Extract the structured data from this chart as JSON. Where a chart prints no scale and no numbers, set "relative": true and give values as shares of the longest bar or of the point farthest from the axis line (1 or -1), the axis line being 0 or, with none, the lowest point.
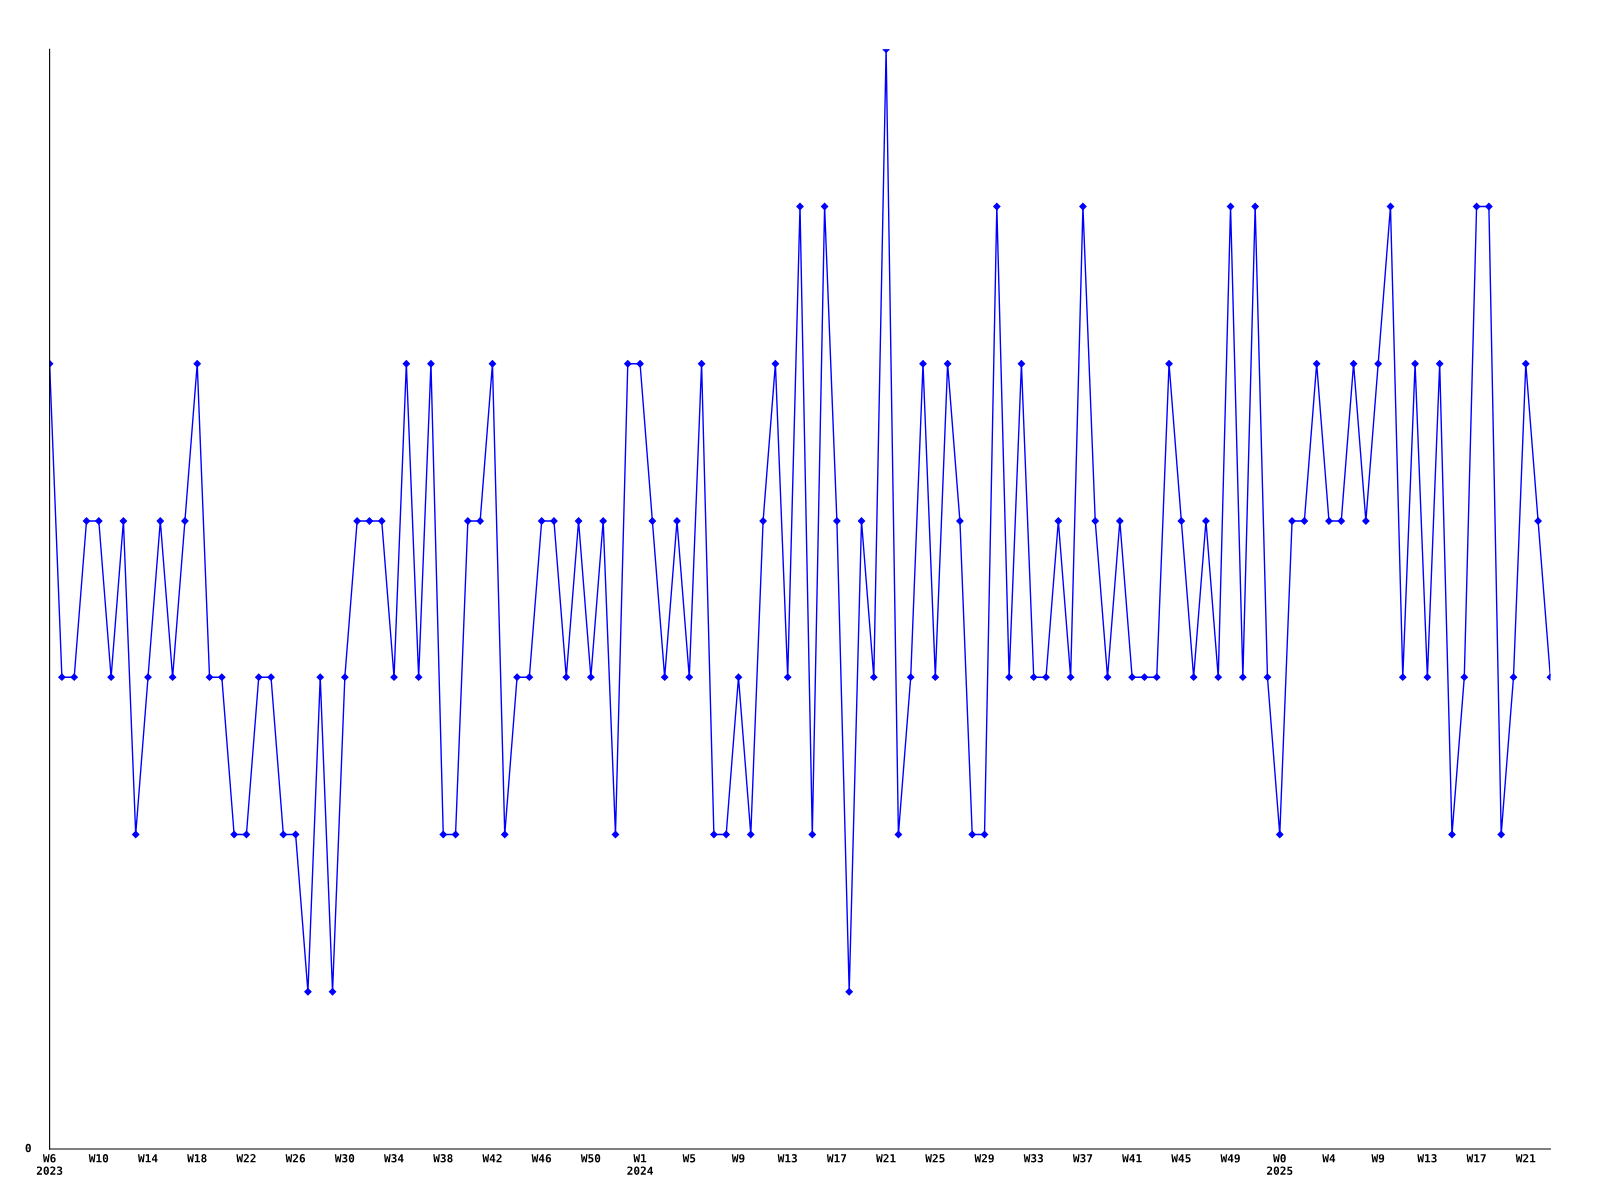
{
  "chart_data": {
    "type": "line",
    "relative": true,
    "marker": "diamond",
    "line_style": "solid",
    "grid": false,
    "legend": false,
    "tick_labels": "x",
    "annotations": [
      "0"
    ],
    "categories": [
      "W6\n2023",
      null,
      null,
      null,
      "W10",
      null,
      null,
      null,
      "W14",
      null,
      null,
      null,
      "W18",
      null,
      null,
      null,
      "W22",
      null,
      null,
      null,
      "W26",
      null,
      null,
      null,
      "W30",
      null,
      null,
      null,
      "W34",
      null,
      null,
      null,
      "W38",
      null,
      null,
      null,
      "W42",
      null,
      null,
      null,
      "W46",
      null,
      null,
      null,
      "W50",
      null,
      null,
      null,
      "W1\n2024",
      null,
      null,
      null,
      "W5",
      null,
      null,
      null,
      "W9",
      null,
      null,
      null,
      "W13",
      null,
      null,
      null,
      "W17",
      null,
      null,
      null,
      "W21",
      null,
      null,
      null,
      "W25",
      null,
      null,
      null,
      "W29",
      null,
      null,
      null,
      "W33",
      null,
      null,
      null,
      "W37",
      null,
      null,
      null,
      "W41",
      null,
      null,
      null,
      "W45",
      null,
      null,
      null,
      "W49",
      null,
      null,
      null,
      "W0\n2025",
      null,
      null,
      null,
      "W4",
      null,
      null,
      null,
      "W9",
      null,
      null,
      null,
      "W13",
      null,
      null,
      null,
      "W17",
      null,
      null,
      null,
      "W21",
      null,
      null
    ],
    "series": [
      {
        "color": "#0000ff",
        "values": [
          0.714,
          0.429,
          0.429,
          0.571,
          0.571,
          0.429,
          0.571,
          0.286,
          0.429,
          0.571,
          0.429,
          0.571,
          0.714,
          0.429,
          0.429,
          0.286,
          0.286,
          0.429,
          0.429,
          0.286,
          0.286,
          0.143,
          0.429,
          0.143,
          0.429,
          0.571,
          0.571,
          0.571,
          0.429,
          0.714,
          0.429,
          0.714,
          0.286,
          0.286,
          0.571,
          0.571,
          0.714,
          0.286,
          0.429,
          0.429,
          0.571,
          0.571,
          0.429,
          0.571,
          0.429,
          0.571,
          0.286,
          0.714,
          0.714,
          0.571,
          0.429,
          0.571,
          0.429,
          0.714,
          0.286,
          0.286,
          0.429,
          0.286,
          0.571,
          0.714,
          0.429,
          0.857,
          0.286,
          0.857,
          0.571,
          0.143,
          0.571,
          0.429,
          1,
          0.286,
          0.429,
          0.714,
          0.429,
          0.714,
          0.571,
          0.286,
          0.286,
          0.857,
          0.429,
          0.714,
          0.429,
          0.429,
          0.571,
          0.429,
          0.857,
          0.571,
          0.429,
          0.571,
          0.429,
          0.429,
          0.429,
          0.714,
          0.571,
          0.429,
          0.571,
          0.429,
          0.857,
          0.429,
          0.857,
          0.429,
          0.286,
          0.571,
          0.571,
          0.714,
          0.571,
          0.571,
          0.714,
          0.571,
          0.714,
          0.857,
          0.429,
          0.714,
          0.429,
          0.714,
          0.286,
          0.429,
          0.857,
          0.857,
          0.286,
          0.429,
          0.714,
          0.571,
          0.429
        ]
      }
    ]
  }
}
